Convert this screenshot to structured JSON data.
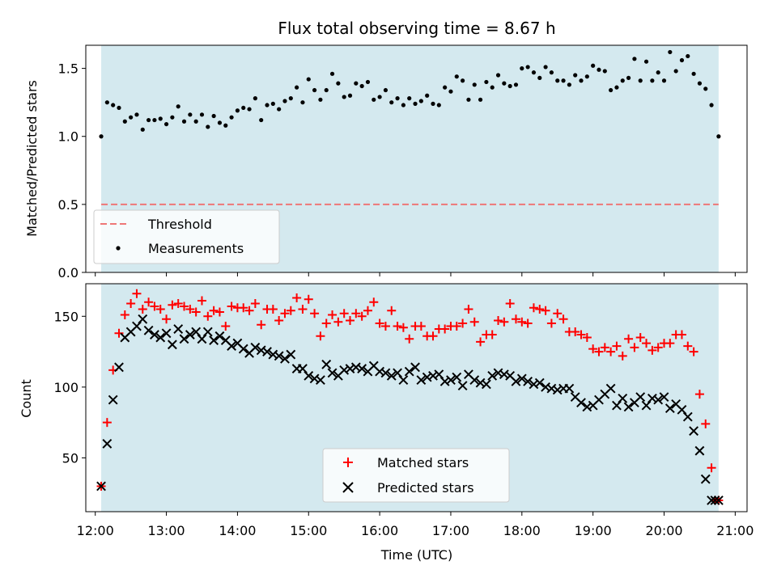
{
  "chart_data": [
    {
      "type": "scatter",
      "title": "Flux total observing time = 8.67 h",
      "xlabel": "",
      "ylabel": "Matched/Predicted stars",
      "xlim": [
        "11:52",
        "21:10"
      ],
      "ylim": [
        0,
        1.67
      ],
      "yticks": [
        0.0,
        0.5,
        1.0,
        1.5
      ],
      "ytick_labels": [
        "0.0",
        "0.5",
        "1.0",
        "1.5"
      ],
      "observing_span": [
        "12:05",
        "20:46"
      ],
      "observing_span_color": "#d4e9ef",
      "threshold": {
        "name": "Threshold",
        "value": 0.5,
        "color": "#ee7777",
        "style": "dashed"
      },
      "legend": {
        "placement": "lower left",
        "entries": [
          "Threshold",
          "Measurements"
        ]
      },
      "series": [
        {
          "name": "Measurements",
          "color": "#000000",
          "marker": "dot",
          "x": [
            "12:05",
            "12:10",
            "12:15",
            "12:20",
            "12:25",
            "12:30",
            "12:35",
            "12:40",
            "12:45",
            "12:50",
            "12:55",
            "13:00",
            "13:05",
            "13:10",
            "13:15",
            "13:20",
            "13:25",
            "13:30",
            "13:35",
            "13:40",
            "13:45",
            "13:50",
            "13:55",
            "14:00",
            "14:05",
            "14:10",
            "14:15",
            "14:20",
            "14:25",
            "14:30",
            "14:35",
            "14:40",
            "14:45",
            "14:50",
            "14:55",
            "15:00",
            "15:05",
            "15:10",
            "15:15",
            "15:20",
            "15:25",
            "15:30",
            "15:35",
            "15:40",
            "15:45",
            "15:50",
            "15:55",
            "16:00",
            "16:05",
            "16:10",
            "16:15",
            "16:20",
            "16:25",
            "16:30",
            "16:35",
            "16:40",
            "16:45",
            "16:50",
            "16:55",
            "17:00",
            "17:05",
            "17:10",
            "17:15",
            "17:20",
            "17:25",
            "17:30",
            "17:35",
            "17:40",
            "17:45",
            "17:50",
            "17:55",
            "18:00",
            "18:05",
            "18:10",
            "18:15",
            "18:20",
            "18:25",
            "18:30",
            "18:35",
            "18:40",
            "18:45",
            "18:50",
            "18:55",
            "19:00",
            "19:05",
            "19:10",
            "19:15",
            "19:20",
            "19:25",
            "19:30",
            "19:35",
            "19:40",
            "19:45",
            "19:50",
            "19:55",
            "20:00",
            "20:05",
            "20:10",
            "20:15",
            "20:20",
            "20:25",
            "20:30",
            "20:35",
            "20:40",
            "20:46"
          ],
          "y": [
            1.0,
            1.25,
            1.23,
            1.21,
            1.11,
            1.14,
            1.16,
            1.05,
            1.12,
            1.12,
            1.13,
            1.09,
            1.14,
            1.22,
            1.11,
            1.16,
            1.11,
            1.16,
            1.07,
            1.15,
            1.1,
            1.08,
            1.14,
            1.19,
            1.21,
            1.2,
            1.28,
            1.12,
            1.23,
            1.24,
            1.2,
            1.26,
            1.28,
            1.36,
            1.25,
            1.42,
            1.34,
            1.27,
            1.34,
            1.46,
            1.39,
            1.29,
            1.3,
            1.39,
            1.37,
            1.4,
            1.27,
            1.29,
            1.34,
            1.25,
            1.28,
            1.23,
            1.28,
            1.24,
            1.26,
            1.3,
            1.24,
            1.23,
            1.36,
            1.33,
            1.44,
            1.41,
            1.27,
            1.38,
            1.27,
            1.4,
            1.36,
            1.45,
            1.39,
            1.37,
            1.38,
            1.5,
            1.51,
            1.47,
            1.43,
            1.51,
            1.47,
            1.41,
            1.41,
            1.38,
            1.45,
            1.41,
            1.44,
            1.52,
            1.49,
            1.48,
            1.34,
            1.36,
            1.41,
            1.43,
            1.57,
            1.41,
            1.55,
            1.41,
            1.47,
            1.41,
            1.62,
            1.48,
            1.56,
            1.59,
            1.46,
            1.39,
            1.35,
            1.23,
            1.0
          ]
        }
      ]
    },
    {
      "type": "scatter",
      "title": "",
      "xlabel": "Time (UTC)",
      "ylabel": "Count",
      "xlim": [
        "11:52",
        "21:10"
      ],
      "ylim": [
        12,
        173
      ],
      "yticks": [
        50,
        100,
        150
      ],
      "ytick_labels": [
        "50",
        "100",
        "150"
      ],
      "xticks": [
        "12:00",
        "13:00",
        "14:00",
        "15:00",
        "16:00",
        "17:00",
        "18:00",
        "19:00",
        "20:00",
        "21:00"
      ],
      "observing_span": [
        "12:05",
        "20:46"
      ],
      "observing_span_color": "#d4e9ef",
      "legend": {
        "placement": "lower center",
        "entries": [
          "Matched stars",
          "Predicted stars"
        ]
      },
      "series": [
        {
          "name": "Matched stars",
          "color": "#ff0000",
          "marker": "plus",
          "x": [
            "12:05",
            "12:10",
            "12:15",
            "12:20",
            "12:25",
            "12:30",
            "12:35",
            "12:40",
            "12:45",
            "12:50",
            "12:55",
            "13:00",
            "13:05",
            "13:10",
            "13:15",
            "13:20",
            "13:25",
            "13:30",
            "13:35",
            "13:40",
            "13:45",
            "13:50",
            "13:55",
            "14:00",
            "14:05",
            "14:10",
            "14:15",
            "14:20",
            "14:25",
            "14:30",
            "14:35",
            "14:40",
            "14:45",
            "14:50",
            "14:55",
            "15:00",
            "15:05",
            "15:10",
            "15:15",
            "15:20",
            "15:25",
            "15:30",
            "15:35",
            "15:40",
            "15:45",
            "15:50",
            "15:55",
            "16:00",
            "16:05",
            "16:10",
            "16:15",
            "16:20",
            "16:25",
            "16:30",
            "16:35",
            "16:40",
            "16:45",
            "16:50",
            "16:55",
            "17:00",
            "17:05",
            "17:10",
            "17:15",
            "17:20",
            "17:25",
            "17:30",
            "17:35",
            "17:40",
            "17:45",
            "17:50",
            "17:55",
            "18:00",
            "18:05",
            "18:10",
            "18:15",
            "18:20",
            "18:25",
            "18:30",
            "18:35",
            "18:40",
            "18:45",
            "18:50",
            "18:55",
            "19:00",
            "19:05",
            "19:10",
            "19:15",
            "19:20",
            "19:25",
            "19:30",
            "19:35",
            "19:40",
            "19:45",
            "19:50",
            "19:55",
            "20:00",
            "20:05",
            "20:10",
            "20:15",
            "20:20",
            "20:25",
            "20:30",
            "20:35",
            "20:40",
            "20:43",
            "20:46"
          ],
          "y": [
            30,
            75,
            112,
            138,
            151,
            159,
            166,
            155,
            160,
            157,
            155,
            148,
            158,
            159,
            157,
            155,
            153,
            161,
            150,
            154,
            153,
            143,
            157,
            156,
            156,
            154,
            159,
            144,
            155,
            155,
            147,
            152,
            154,
            163,
            155,
            162,
            152,
            136,
            145,
            151,
            146,
            152,
            147,
            152,
            150,
            154,
            160,
            145,
            143,
            154,
            143,
            142,
            134,
            143,
            143,
            136,
            136,
            141,
            141,
            143,
            143,
            145,
            155,
            146,
            132,
            137,
            137,
            147,
            146,
            159,
            148,
            146,
            145,
            156,
            155,
            154,
            145,
            152,
            148,
            139,
            139,
            137,
            135,
            127,
            125,
            128,
            125,
            129,
            122,
            134,
            128,
            135,
            131,
            126,
            128,
            131,
            131,
            137,
            137,
            129,
            125,
            95,
            74,
            43,
            20,
            20
          ]
        },
        {
          "name": "Predicted stars",
          "color": "#000000",
          "marker": "x",
          "x": [
            "12:05",
            "12:10",
            "12:15",
            "12:20",
            "12:25",
            "12:30",
            "12:35",
            "12:40",
            "12:45",
            "12:50",
            "12:55",
            "13:00",
            "13:05",
            "13:10",
            "13:15",
            "13:20",
            "13:25",
            "13:30",
            "13:35",
            "13:40",
            "13:45",
            "13:50",
            "13:55",
            "14:00",
            "14:05",
            "14:10",
            "14:15",
            "14:20",
            "14:25",
            "14:30",
            "14:35",
            "14:40",
            "14:45",
            "14:50",
            "14:55",
            "15:00",
            "15:05",
            "15:10",
            "15:15",
            "15:20",
            "15:25",
            "15:30",
            "15:35",
            "15:40",
            "15:45",
            "15:50",
            "15:55",
            "16:00",
            "16:05",
            "16:10",
            "16:15",
            "16:20",
            "16:25",
            "16:30",
            "16:35",
            "16:40",
            "16:45",
            "16:50",
            "16:55",
            "17:00",
            "17:05",
            "17:10",
            "17:15",
            "17:20",
            "17:25",
            "17:30",
            "17:35",
            "17:40",
            "17:45",
            "17:50",
            "17:55",
            "18:00",
            "18:05",
            "18:10",
            "18:15",
            "18:20",
            "18:25",
            "18:30",
            "18:35",
            "18:40",
            "18:45",
            "18:50",
            "18:55",
            "19:00",
            "19:05",
            "19:10",
            "19:15",
            "19:20",
            "19:25",
            "19:30",
            "19:35",
            "19:40",
            "19:45",
            "19:50",
            "19:55",
            "20:00",
            "20:05",
            "20:10",
            "20:15",
            "20:20",
            "20:25",
            "20:30",
            "20:35",
            "20:40",
            "20:43",
            "20:46"
          ],
          "y": [
            30,
            60,
            91,
            114,
            135,
            139,
            143,
            148,
            140,
            137,
            135,
            138,
            130,
            141,
            134,
            137,
            139,
            134,
            139,
            133,
            136,
            133,
            129,
            131,
            127,
            124,
            128,
            126,
            125,
            123,
            122,
            120,
            123,
            113,
            113,
            108,
            106,
            105,
            116,
            110,
            108,
            112,
            113,
            114,
            113,
            111,
            115,
            111,
            110,
            108,
            110,
            105,
            111,
            114,
            105,
            107,
            108,
            109,
            104,
            105,
            107,
            101,
            109,
            105,
            103,
            102,
            108,
            110,
            109,
            108,
            104,
            106,
            104,
            102,
            103,
            100,
            99,
            98,
            99,
            99,
            93,
            89,
            86,
            87,
            91,
            95,
            99,
            87,
            92,
            86,
            89,
            93,
            87,
            92,
            91,
            93,
            85,
            88,
            84,
            79,
            69,
            55,
            35,
            20,
            20,
            20
          ]
        }
      ]
    }
  ]
}
